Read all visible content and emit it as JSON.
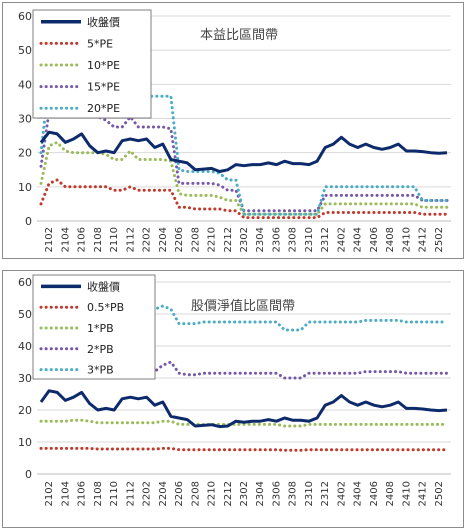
{
  "chart_data": [
    {
      "type": "line",
      "title": "本益比區間帶",
      "xlabel": "",
      "ylabel": "",
      "ylim": [
        0,
        60
      ],
      "yticks": [
        0,
        10,
        20,
        30,
        40,
        50,
        60
      ],
      "x": [
        "2101",
        "2102",
        "2103",
        "2104",
        "2105",
        "2106",
        "2107",
        "2108",
        "2109",
        "2110",
        "2111",
        "2112",
        "2201",
        "2202",
        "2203",
        "2204",
        "2205",
        "2206",
        "2207",
        "2208",
        "2209",
        "2210",
        "2211",
        "2212",
        "2301",
        "2302",
        "2303",
        "2304",
        "2305",
        "2306",
        "2307",
        "2308",
        "2309",
        "2310",
        "2311",
        "2312",
        "2401",
        "2402",
        "2403",
        "2404",
        "2405",
        "2406",
        "2407",
        "2408",
        "2409",
        "2410",
        "2411",
        "2412",
        "2501",
        "2502",
        "2503"
      ],
      "x_tick_labels": [
        "2102",
        "2104",
        "2106",
        "2108",
        "2110",
        "2112",
        "2202",
        "2204",
        "2206",
        "2208",
        "2210",
        "2212",
        "2302",
        "2304",
        "2306",
        "2308",
        "2310",
        "2312",
        "2402",
        "2404",
        "2406",
        "2408",
        "2410",
        "2412",
        "2502"
      ],
      "grid": true,
      "legend": "top-left",
      "series": [
        {
          "name": "收盤價",
          "color": "#0d2a6b",
          "style": "solid",
          "values": [
            23,
            26,
            25.5,
            23,
            24,
            25.5,
            22,
            20,
            20.5,
            20,
            23.5,
            24,
            23.5,
            24,
            21.5,
            22.5,
            18,
            17.5,
            17,
            15,
            15.2,
            15.4,
            14.5,
            15,
            16.5,
            16.2,
            16.5,
            16.5,
            17,
            16.5,
            17.5,
            16.8,
            16.8,
            16.5,
            17.5,
            21.5,
            22.5,
            24.5,
            22.5,
            21.5,
            22.5,
            21.5,
            21,
            21.5,
            22.5,
            20.5,
            20.5,
            20.3,
            20,
            19.8,
            20
          ]
        },
        {
          "name": "5*PE",
          "color": "#c0392b",
          "style": "dotted",
          "values": [
            5,
            11,
            12,
            10,
            10,
            10,
            10,
            10,
            10,
            9,
            9,
            10,
            9,
            9,
            9,
            9,
            9,
            4,
            4,
            3.5,
            3.5,
            3.5,
            3.5,
            3,
            3,
            1,
            1,
            1,
            1,
            1,
            1,
            1,
            1,
            1,
            1,
            2.5,
            2.5,
            2.5,
            2.5,
            2.5,
            2.5,
            2.5,
            2.5,
            2.5,
            2.5,
            2.5,
            2.5,
            2,
            2,
            2,
            2
          ]
        },
        {
          "name": "10*PE",
          "color": "#9bbb59",
          "style": "dotted",
          "values": [
            11,
            22,
            23,
            20.5,
            20,
            20,
            20,
            20,
            19.5,
            18,
            18,
            20.5,
            18,
            18,
            18,
            18,
            17.5,
            8,
            7.5,
            7.5,
            7.5,
            7.5,
            7,
            6,
            6,
            2,
            2,
            2,
            2,
            2,
            2,
            2,
            2,
            2,
            2,
            5,
            5,
            5,
            5,
            5,
            5,
            5,
            5,
            5,
            5,
            5,
            5,
            4,
            4,
            4,
            4
          ]
        },
        {
          "name": "15*PE",
          "color": "#7559a8",
          "style": "dotted",
          "values": [
            16,
            32,
            32,
            31,
            30.5,
            30.5,
            30.5,
            30.5,
            29.5,
            27.5,
            27.5,
            30.5,
            27.5,
            27.5,
            27.5,
            27.5,
            27,
            11,
            11,
            11,
            11,
            11,
            10.5,
            9,
            9,
            3,
            3,
            3,
            3,
            3,
            3,
            3,
            3,
            3,
            3,
            7.5,
            7.5,
            7.5,
            7.5,
            7.5,
            7.5,
            7.5,
            7.5,
            7.5,
            7.5,
            7.5,
            7.5,
            6,
            6,
            6,
            6
          ]
        },
        {
          "name": "20*PE",
          "color": "#4bacc6",
          "style": "dotted",
          "values": [
            20,
            41,
            43,
            41,
            40.5,
            40.5,
            40.5,
            40.5,
            39.5,
            37,
            40.5,
            41,
            37,
            36.5,
            36.5,
            36.5,
            36.5,
            15,
            14.5,
            14.5,
            14.5,
            14.5,
            14,
            12,
            12,
            2,
            2,
            2,
            2,
            2,
            2,
            2,
            2,
            2,
            2,
            10,
            10,
            10,
            10,
            10,
            10,
            10,
            10,
            10,
            10,
            10,
            10,
            6,
            6,
            6,
            6
          ]
        }
      ]
    },
    {
      "type": "line",
      "title": "股價淨值比區間帶",
      "xlabel": "",
      "ylabel": "",
      "ylim": [
        0,
        60
      ],
      "yticks": [
        0,
        10,
        20,
        30,
        40,
        50,
        60
      ],
      "x": [
        "2101",
        "2102",
        "2103",
        "2104",
        "2105",
        "2106",
        "2107",
        "2108",
        "2109",
        "2110",
        "2111",
        "2112",
        "2201",
        "2202",
        "2203",
        "2204",
        "2205",
        "2206",
        "2207",
        "2208",
        "2209",
        "2210",
        "2211",
        "2212",
        "2301",
        "2302",
        "2303",
        "2304",
        "2305",
        "2306",
        "2307",
        "2308",
        "2309",
        "2310",
        "2311",
        "2312",
        "2401",
        "2402",
        "2403",
        "2404",
        "2405",
        "2406",
        "2407",
        "2408",
        "2409",
        "2410",
        "2411",
        "2412",
        "2501",
        "2502",
        "2503"
      ],
      "x_tick_labels": [
        "2102",
        "2104",
        "2106",
        "2108",
        "2110",
        "2112",
        "2202",
        "2204",
        "2206",
        "2208",
        "2210",
        "2212",
        "2302",
        "2304",
        "2306",
        "2308",
        "2310",
        "2312",
        "2402",
        "2404",
        "2406",
        "2408",
        "2410",
        "2412",
        "2502"
      ],
      "grid": true,
      "legend": "top-left",
      "series": [
        {
          "name": "收盤價",
          "color": "#0d2a6b",
          "style": "solid",
          "values": [
            22.5,
            26,
            25.5,
            23,
            24,
            25.5,
            22,
            20,
            20.5,
            20,
            23.5,
            24,
            23.5,
            24,
            21.5,
            22.5,
            18,
            17.5,
            17,
            15,
            15.2,
            15.4,
            14.8,
            15,
            16.5,
            16.2,
            16.5,
            16.5,
            17,
            16.5,
            17.5,
            16.8,
            16.8,
            16.5,
            17.5,
            21.5,
            22.5,
            24.5,
            22.5,
            21.5,
            22.5,
            21.5,
            21,
            21.5,
            22.5,
            20.5,
            20.5,
            20.3,
            20,
            19.8,
            20
          ]
        },
        {
          "name": "0.5*PB",
          "color": "#c0392b",
          "style": "dotted",
          "values": [
            8,
            8,
            8,
            8,
            8,
            8,
            8,
            7.8,
            7.8,
            7.8,
            7.8,
            7.8,
            7.8,
            7.8,
            7.8,
            8,
            8,
            7.6,
            7.6,
            7.6,
            7.6,
            7.6,
            7.6,
            7.6,
            7.6,
            7.6,
            7.6,
            7.6,
            7.6,
            7.6,
            7.4,
            7.4,
            7.4,
            7.6,
            7.6,
            7.6,
            7.6,
            7.6,
            7.6,
            7.6,
            7.6,
            7.6,
            7.6,
            7.6,
            7.6,
            7.6,
            7.6,
            7.6,
            7.6,
            7.6,
            7.6
          ]
        },
        {
          "name": "1*PB",
          "color": "#9bbb59",
          "style": "dotted",
          "values": [
            16.5,
            16.5,
            16.5,
            16.5,
            16.8,
            16.8,
            16.5,
            16,
            16,
            16,
            16,
            16,
            16,
            16,
            16,
            16.5,
            16.5,
            15.5,
            15.5,
            15.5,
            15.5,
            15.5,
            15.5,
            15.5,
            15.5,
            15.5,
            15.5,
            15.5,
            15.5,
            15.5,
            15,
            15,
            15,
            15.5,
            15.5,
            15.5,
            15.5,
            15.5,
            15.5,
            15.5,
            15.5,
            15.5,
            15.5,
            15.5,
            15.5,
            15.5,
            15.5,
            15.5,
            15.5,
            15.5,
            15.5
          ]
        },
        {
          "name": "2*PB",
          "color": "#7559a8",
          "style": "dotted",
          "values": [
            32.5,
            33,
            33,
            33,
            33.5,
            33.5,
            33,
            32,
            32,
            32,
            32,
            32,
            32,
            32,
            32,
            34,
            35,
            31.5,
            31,
            31,
            31.5,
            31.5,
            31.5,
            31.5,
            31.5,
            31.5,
            31.5,
            31.5,
            31.5,
            31.5,
            30,
            30,
            30,
            31.5,
            31.5,
            31.5,
            31.5,
            31.5,
            31.5,
            31.5,
            32,
            32,
            32,
            32,
            32,
            31.5,
            31.5,
            31.5,
            31.5,
            31.5,
            31.5
          ]
        },
        {
          "name": "3*PB",
          "color": "#4bacc6",
          "style": "dotted",
          "values": [
            48.5,
            49,
            49,
            49,
            49.5,
            49.5,
            49,
            48,
            48,
            48,
            48,
            48,
            48.5,
            48.5,
            51.5,
            52.5,
            51.5,
            47,
            47,
            47,
            47.5,
            47.5,
            47.5,
            47.5,
            47.5,
            47.5,
            47.5,
            47.5,
            47.5,
            47.5,
            45,
            45,
            45,
            47.5,
            47.5,
            47.5,
            47.5,
            47.5,
            47.5,
            47.5,
            48,
            48,
            48,
            48,
            48,
            47.5,
            47.5,
            47.5,
            47.5,
            47.5,
            47.5
          ]
        }
      ]
    }
  ]
}
